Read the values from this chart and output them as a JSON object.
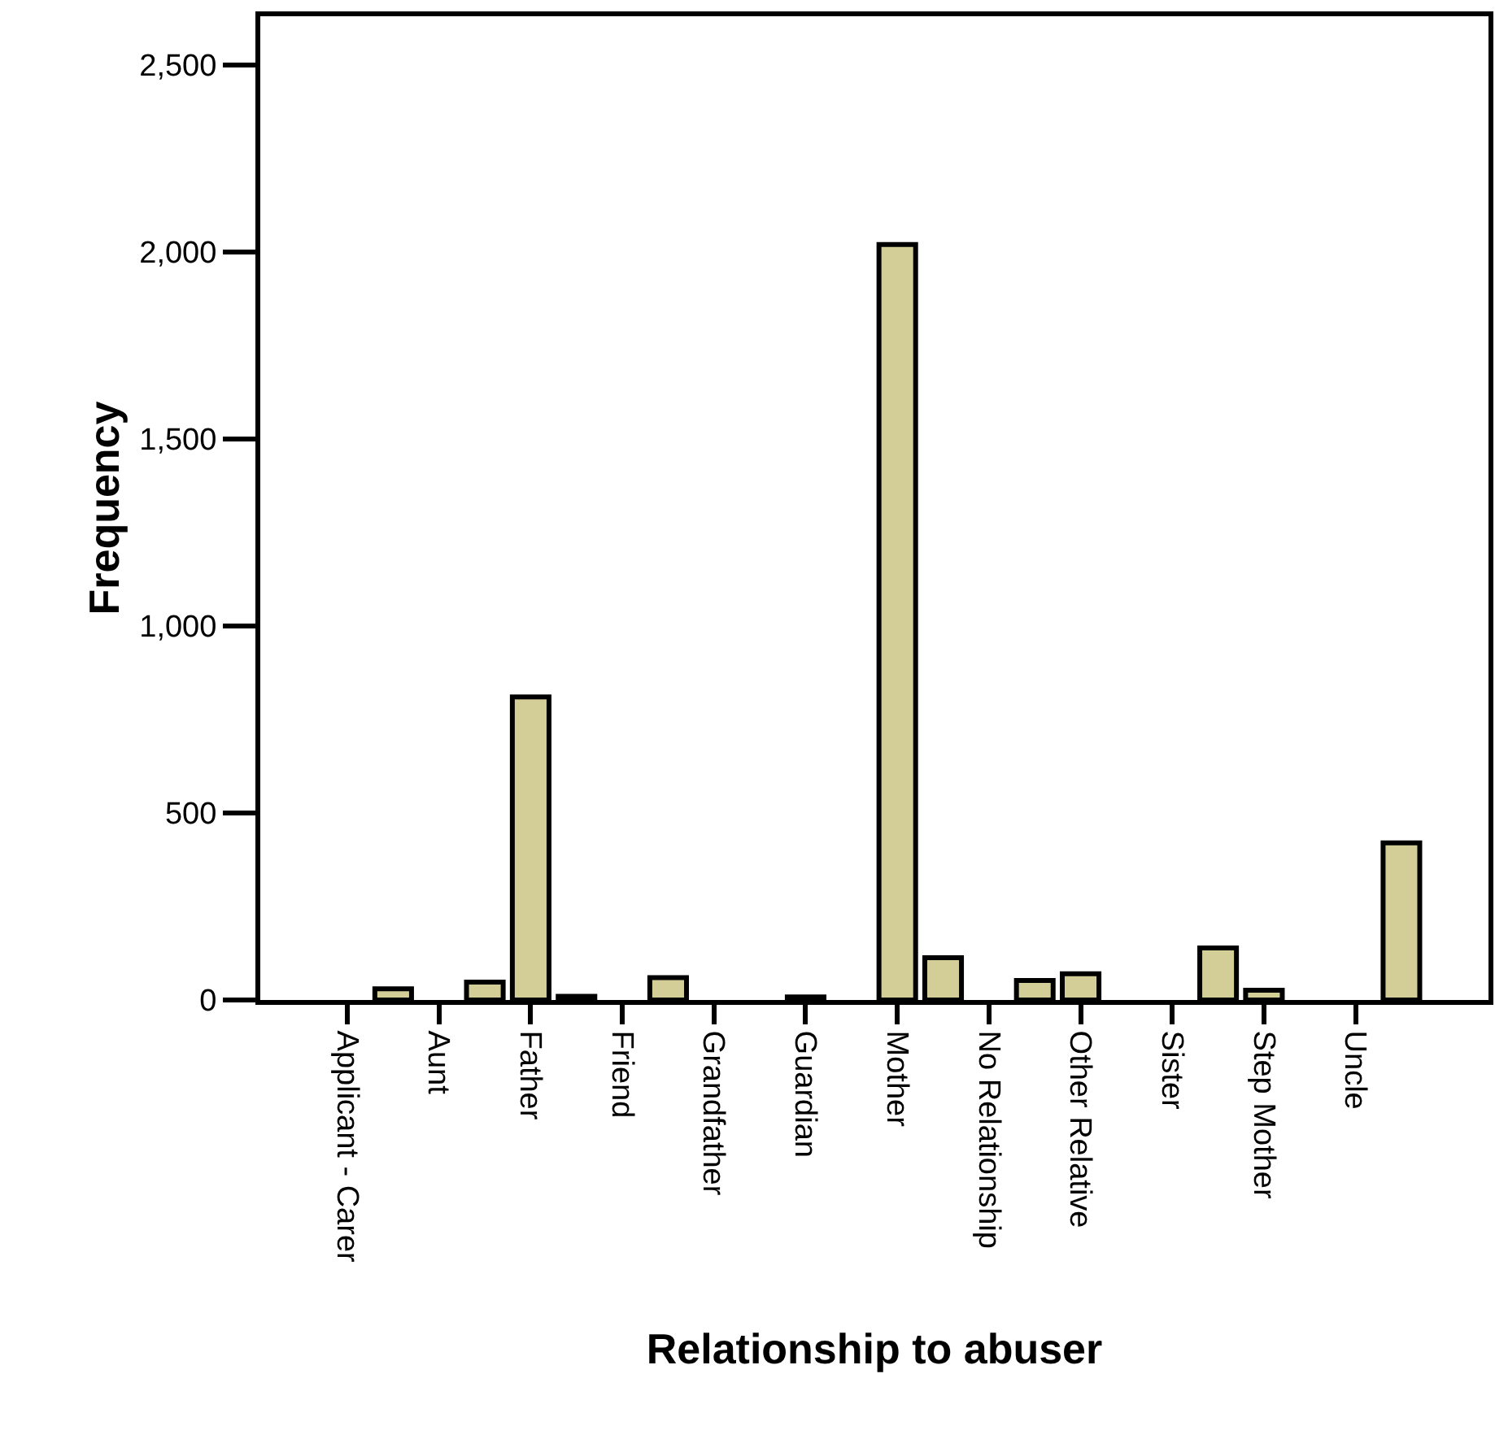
{
  "chart_data": {
    "type": "bar",
    "xlabel": "Relationship to abuser",
    "ylabel": "Frequency",
    "categories": [
      "Applicant - Carer",
      null,
      "Aunt",
      null,
      "Father",
      null,
      "Friend",
      null,
      "Grandfather",
      null,
      "Guardian",
      null,
      "Mother",
      null,
      "No Relationship",
      null,
      "Other Relative",
      null,
      "Sister",
      null,
      "Step Mother",
      null,
      "Uncle",
      null
    ],
    "values": [
      null,
      30,
      null,
      48,
      810,
      10,
      null,
      60,
      null,
      null,
      8,
      null,
      2020,
      113,
      null,
      52,
      70,
      null,
      null,
      139,
      26,
      null,
      null,
      420
    ],
    "color": "#d3cd98",
    "ylim": [
      0,
      2630
    ],
    "yticks": [
      0,
      {
        "value": 500,
        "label": "500"
      },
      {
        "value": 1000,
        "label": "1,000"
      },
      {
        "value": 1500,
        "label": "1,500"
      },
      {
        "value": 2000,
        "label": "2,000"
      },
      {
        "value": 2500,
        "label": "2,500"
      }
    ]
  }
}
